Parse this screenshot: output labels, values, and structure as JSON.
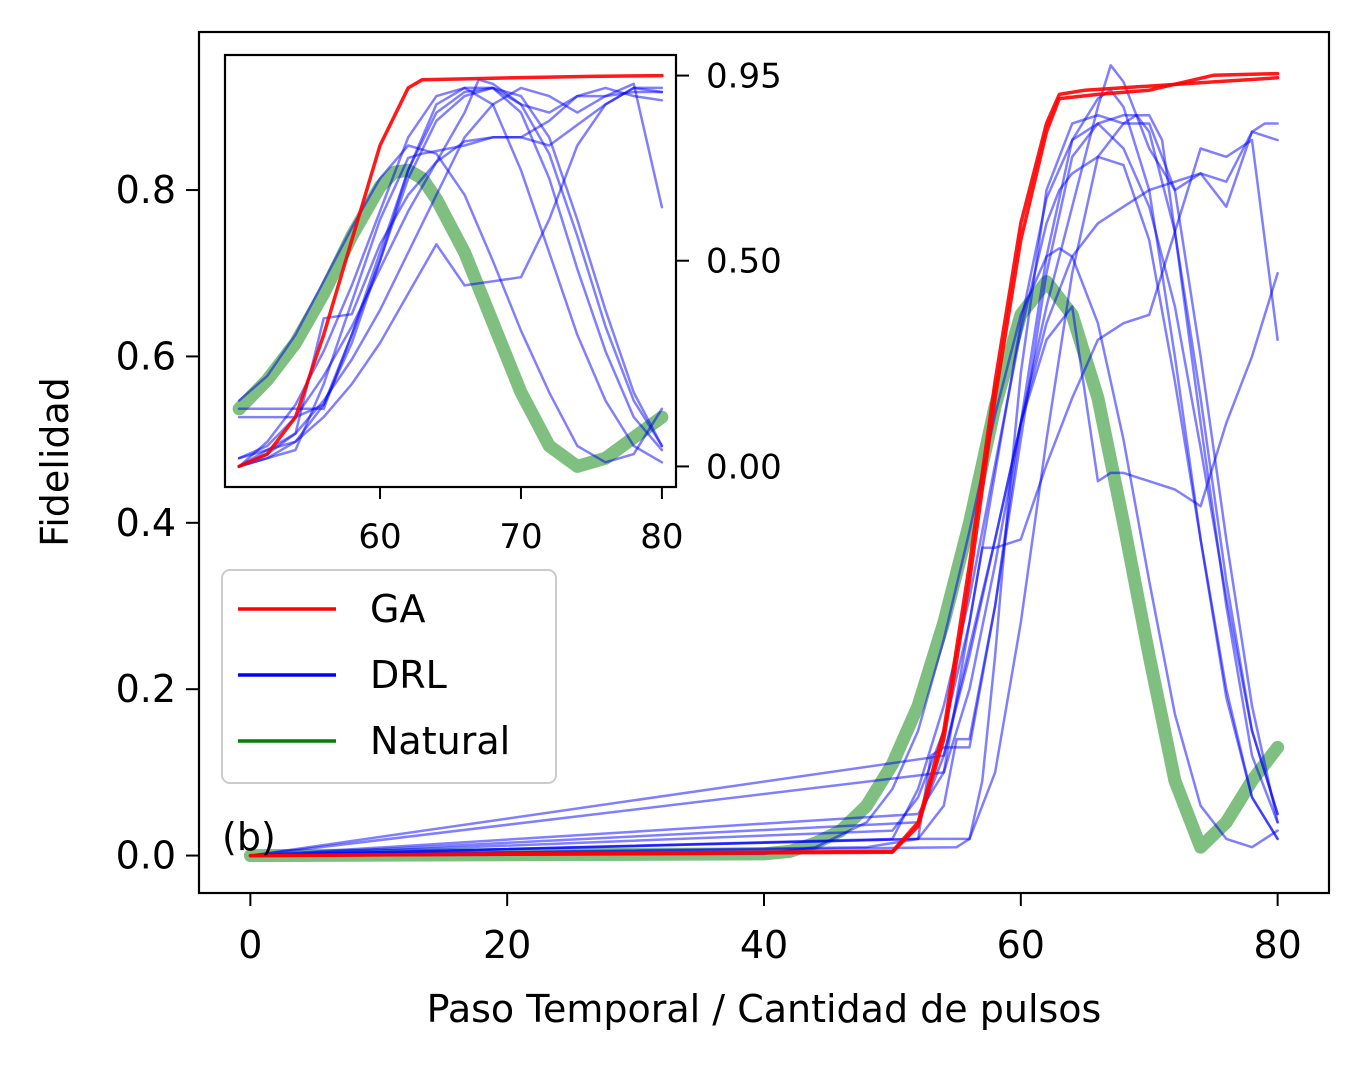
{
  "chart_data": {
    "type": "line",
    "panel_label": "(b)",
    "xlabel": "Paso Temporal / Cantidad de pulsos",
    "ylabel": "Fidelidad",
    "xlim": [
      -4,
      84
    ],
    "ylim": [
      -0.045,
      0.99
    ],
    "xticks": [
      0,
      20,
      40,
      60,
      80
    ],
    "yticks": [
      0.0,
      0.2,
      0.4,
      0.6,
      0.8
    ],
    "xtick_labels": [
      "0",
      "20",
      "40",
      "60",
      "80"
    ],
    "ytick_labels": [
      "0.0",
      "0.2",
      "0.4",
      "0.6",
      "0.8"
    ],
    "legend": {
      "placement": "center-left",
      "entries": [
        {
          "label": "GA",
          "color": "#ff0000"
        },
        {
          "label": "DRL",
          "color": "#0000ff"
        },
        {
          "label": "Natural",
          "color": "#008000"
        }
      ]
    },
    "colors": {
      "ga": "#ff0000",
      "drl": "#0000ff",
      "natural": "#008000"
    },
    "series": [
      {
        "group": "Natural",
        "x": [
          0,
          40,
          42,
          44,
          46,
          48,
          50,
          52,
          54,
          56,
          58,
          60,
          62,
          64,
          66,
          68,
          70,
          72,
          74,
          76,
          78,
          80
        ],
        "y": [
          0,
          0.002,
          0.005,
          0.015,
          0.03,
          0.06,
          0.11,
          0.18,
          0.28,
          0.4,
          0.54,
          0.65,
          0.69,
          0.65,
          0.55,
          0.4,
          0.24,
          0.09,
          0.01,
          0.04,
          0.09,
          0.13
        ]
      },
      {
        "group": "GA",
        "x": [
          0,
          50,
          52,
          54,
          56,
          58,
          60,
          62,
          63,
          65,
          70,
          75,
          80
        ],
        "y": [
          0,
          0.005,
          0.04,
          0.15,
          0.35,
          0.57,
          0.76,
          0.88,
          0.915,
          0.92,
          0.925,
          0.93,
          0.935
        ]
      },
      {
        "group": "GA",
        "x": [
          0,
          50,
          52,
          54,
          56,
          58,
          60,
          62,
          63,
          66,
          70,
          75,
          80
        ],
        "y": [
          0,
          0.004,
          0.035,
          0.14,
          0.33,
          0.55,
          0.74,
          0.87,
          0.91,
          0.915,
          0.92,
          0.938,
          0.94
        ]
      },
      {
        "group": "DRL",
        "x": [
          0,
          40,
          44,
          48,
          50,
          52,
          54,
          56,
          58,
          60,
          62,
          63,
          64,
          66,
          68,
          70,
          72,
          74,
          76,
          78,
          80
        ],
        "y": [
          0,
          0.002,
          0.01,
          0.04,
          0.08,
          0.15,
          0.26,
          0.39,
          0.53,
          0.65,
          0.72,
          0.73,
          0.72,
          0.64,
          0.5,
          0.33,
          0.17,
          0.06,
          0.02,
          0.01,
          0.03
        ]
      },
      {
        "group": "DRL",
        "x": [
          0,
          50,
          52,
          54,
          56,
          58,
          60,
          62,
          63,
          64,
          66,
          68,
          70,
          72,
          74,
          76,
          78,
          80
        ],
        "y": [
          0,
          0.02,
          0.08,
          0.18,
          0.31,
          0.47,
          0.63,
          0.76,
          0.8,
          0.82,
          0.84,
          0.83,
          0.74,
          0.57,
          0.38,
          0.2,
          0.07,
          0.02
        ]
      },
      {
        "group": "DRL",
        "x": [
          0,
          48,
          52,
          56,
          58,
          60,
          62,
          64,
          66,
          68,
          69,
          70,
          72,
          74,
          76,
          78,
          80
        ],
        "y": [
          0,
          0.01,
          0.02,
          0.02,
          0.1,
          0.28,
          0.5,
          0.7,
          0.84,
          0.88,
          0.89,
          0.87,
          0.75,
          0.55,
          0.33,
          0.15,
          0.05
        ]
      },
      {
        "group": "DRL",
        "x": [
          0,
          52,
          54,
          55,
          56,
          58,
          60,
          62,
          64,
          66,
          67,
          68,
          70,
          72,
          74,
          76,
          78,
          80
        ],
        "y": [
          0,
          0.02,
          0.06,
          0.14,
          0.14,
          0.3,
          0.52,
          0.72,
          0.86,
          0.91,
          0.92,
          0.9,
          0.8,
          0.6,
          0.38,
          0.19,
          0.07,
          0.02
        ]
      },
      {
        "group": "DRL",
        "x": [
          0,
          55,
          56,
          57,
          58,
          59,
          60,
          62,
          64,
          66,
          68,
          70,
          72,
          74,
          76,
          78,
          80
        ],
        "y": [
          0,
          0.01,
          0.02,
          0.09,
          0.24,
          0.42,
          0.58,
          0.8,
          0.88,
          0.89,
          0.88,
          0.88,
          0.8,
          0.6,
          0.38,
          0.18,
          0.04
        ]
      },
      {
        "group": "DRL",
        "x": [
          0,
          52,
          53,
          54,
          55,
          56,
          58,
          60,
          62,
          64,
          66,
          68,
          70,
          71,
          72,
          74,
          76,
          78,
          80
        ],
        "y": [
          0,
          0.02,
          0.12,
          0.13,
          0.13,
          0.13,
          0.3,
          0.5,
          0.7,
          0.84,
          0.88,
          0.89,
          0.89,
          0.86,
          0.75,
          0.52,
          0.3,
          0.12,
          0.04
        ]
      },
      {
        "group": "DRL",
        "x": [
          0,
          50,
          52,
          54,
          56,
          58,
          60,
          62,
          64,
          66,
          68,
          70,
          72,
          74,
          76,
          78,
          80
        ],
        "y": [
          0,
          0.03,
          0.07,
          0.15,
          0.28,
          0.46,
          0.64,
          0.79,
          0.86,
          0.88,
          0.85,
          0.78,
          0.66,
          0.49,
          0.31,
          0.15,
          0.05
        ]
      },
      {
        "group": "DRL",
        "x": [
          0,
          52,
          54,
          56,
          57,
          58,
          60,
          62,
          64,
          66,
          68,
          70,
          72,
          74,
          76,
          78,
          80
        ],
        "y": [
          0,
          0.05,
          0.1,
          0.28,
          0.37,
          0.37,
          0.38,
          0.47,
          0.55,
          0.62,
          0.64,
          0.65,
          0.75,
          0.85,
          0.84,
          0.86,
          0.62
        ]
      },
      {
        "group": "DRL",
        "x": [
          0,
          54,
          56,
          58,
          60,
          62,
          64,
          66,
          68,
          70,
          72,
          74,
          76,
          78,
          79,
          80
        ],
        "y": [
          0,
          0.1,
          0.2,
          0.35,
          0.52,
          0.64,
          0.72,
          0.76,
          0.78,
          0.8,
          0.81,
          0.82,
          0.81,
          0.87,
          0.88,
          0.88
        ]
      },
      {
        "group": "DRL",
        "x": [
          0,
          54,
          56,
          58,
          60,
          62,
          64,
          66,
          67,
          68,
          69,
          70,
          72,
          74,
          76,
          78,
          80
        ],
        "y": [
          0,
          0.12,
          0.25,
          0.38,
          0.52,
          0.66,
          0.78,
          0.9,
          0.95,
          0.93,
          0.89,
          0.85,
          0.8,
          0.82,
          0.78,
          0.87,
          0.86
        ]
      },
      {
        "group": "DRL",
        "x": [
          0,
          52,
          54,
          56,
          58,
          60,
          62,
          64,
          66,
          67,
          68,
          70,
          72,
          74,
          76,
          78,
          80
        ],
        "y": [
          0,
          0.04,
          0.12,
          0.24,
          0.38,
          0.52,
          0.62,
          0.66,
          0.45,
          0.46,
          0.46,
          0.45,
          0.44,
          0.42,
          0.52,
          0.6,
          0.7
        ]
      }
    ],
    "inset": {
      "xlim": [
        49,
        81
      ],
      "ylim": [
        -0.05,
        1.0
      ],
      "xticks": [
        60,
        70,
        80
      ],
      "yticks": [
        0.0,
        0.5,
        0.95
      ],
      "xtick_labels": [
        "60",
        "70",
        "80"
      ],
      "ytick_labels": [
        "0.00",
        "0.50",
        "0.95"
      ],
      "series": [
        {
          "group": "Natural",
          "x": [
            50,
            52,
            54,
            56,
            58,
            60,
            61,
            62,
            63,
            64,
            66,
            68,
            70,
            72,
            74,
            76,
            78,
            80
          ],
          "y": [
            0.14,
            0.21,
            0.3,
            0.42,
            0.56,
            0.68,
            0.715,
            0.72,
            0.7,
            0.65,
            0.52,
            0.35,
            0.18,
            0.05,
            0.0,
            0.02,
            0.07,
            0.12
          ]
        },
        {
          "group": "GA",
          "x": [
            50,
            52,
            54,
            56,
            58,
            60,
            62,
            63,
            66,
            70,
            75,
            80
          ],
          "y": [
            0.0,
            0.03,
            0.12,
            0.32,
            0.55,
            0.78,
            0.92,
            0.94,
            0.942,
            0.945,
            0.948,
            0.95
          ]
        },
        {
          "group": "DRL",
          "x": [
            50,
            52,
            54,
            56,
            58,
            60,
            62,
            64,
            66,
            68,
            70,
            72,
            74,
            76,
            78,
            80
          ],
          "y": [
            0.16,
            0.22,
            0.32,
            0.45,
            0.58,
            0.7,
            0.78,
            0.76,
            0.66,
            0.5,
            0.33,
            0.18,
            0.05,
            0.01,
            0.03,
            0.14
          ]
        },
        {
          "group": "DRL",
          "x": [
            50,
            52,
            54,
            56,
            58,
            60,
            62,
            64,
            66,
            68,
            70,
            72,
            74,
            76,
            78,
            80
          ],
          "y": [
            0.0,
            0.06,
            0.15,
            0.28,
            0.44,
            0.62,
            0.8,
            0.9,
            0.92,
            0.88,
            0.72,
            0.52,
            0.32,
            0.16,
            0.05,
            0.01
          ]
        },
        {
          "group": "DRL",
          "x": [
            50,
            54,
            56,
            58,
            60,
            62,
            64,
            66,
            68,
            70,
            72,
            74,
            76,
            78,
            80
          ],
          "y": [
            0.12,
            0.12,
            0.15,
            0.3,
            0.5,
            0.72,
            0.88,
            0.92,
            0.92,
            0.86,
            0.7,
            0.48,
            0.28,
            0.12,
            0.04
          ]
        },
        {
          "group": "DRL",
          "x": [
            50,
            56,
            58,
            60,
            62,
            64,
            66,
            68,
            70,
            72,
            74,
            76,
            78,
            80
          ],
          "y": [
            0.14,
            0.14,
            0.32,
            0.52,
            0.72,
            0.86,
            0.91,
            0.92,
            0.88,
            0.76,
            0.56,
            0.34,
            0.16,
            0.05
          ]
        },
        {
          "group": "DRL",
          "x": [
            50,
            54,
            56,
            58,
            60,
            62,
            64,
            66,
            68,
            70,
            72,
            74,
            76,
            78,
            80
          ],
          "y": [
            0.02,
            0.06,
            0.15,
            0.32,
            0.5,
            0.7,
            0.84,
            0.9,
            0.92,
            0.9,
            0.8,
            0.6,
            0.38,
            0.18,
            0.05
          ]
        },
        {
          "group": "DRL",
          "x": [
            50,
            54,
            56,
            58,
            60,
            62,
            64,
            66,
            68,
            70,
            72,
            74,
            76,
            78,
            80
          ],
          "y": [
            0.0,
            0.08,
            0.36,
            0.37,
            0.54,
            0.66,
            0.74,
            0.79,
            0.8,
            0.8,
            0.78,
            0.83,
            0.88,
            0.92,
            0.91
          ]
        },
        {
          "group": "DRL",
          "x": [
            50,
            54,
            56,
            58,
            60,
            62,
            63,
            66,
            68,
            70,
            72,
            74,
            76,
            78,
            80
          ],
          "y": [
            0.0,
            0.04,
            0.2,
            0.4,
            0.6,
            0.75,
            0.76,
            0.78,
            0.8,
            0.8,
            0.84,
            0.9,
            0.9,
            0.91,
            0.91
          ]
        },
        {
          "group": "DRL",
          "x": [
            50,
            52,
            54,
            56,
            58,
            60,
            62,
            64,
            66,
            67,
            68,
            70,
            72,
            74,
            76,
            78,
            80
          ],
          "y": [
            0.02,
            0.05,
            0.12,
            0.22,
            0.34,
            0.48,
            0.62,
            0.74,
            0.86,
            0.94,
            0.93,
            0.88,
            0.86,
            0.9,
            0.92,
            0.9,
            0.89
          ]
        },
        {
          "group": "DRL",
          "x": [
            50,
            52,
            54,
            56,
            58,
            60,
            62,
            64,
            66,
            68,
            70,
            72,
            74,
            76,
            78,
            80
          ],
          "y": [
            0.0,
            0.03,
            0.08,
            0.16,
            0.26,
            0.38,
            0.52,
            0.66,
            0.8,
            0.88,
            0.92,
            0.9,
            0.86,
            0.9,
            0.93,
            0.63
          ]
        },
        {
          "group": "DRL",
          "x": [
            50,
            52,
            54,
            56,
            58,
            60,
            62,
            64,
            66,
            68,
            70,
            72,
            74,
            76,
            78,
            80
          ],
          "y": [
            0.0,
            0.02,
            0.06,
            0.12,
            0.2,
            0.3,
            0.42,
            0.54,
            0.44,
            0.45,
            0.46,
            0.6,
            0.78,
            0.88,
            0.92,
            0.92
          ]
        }
      ]
    }
  }
}
